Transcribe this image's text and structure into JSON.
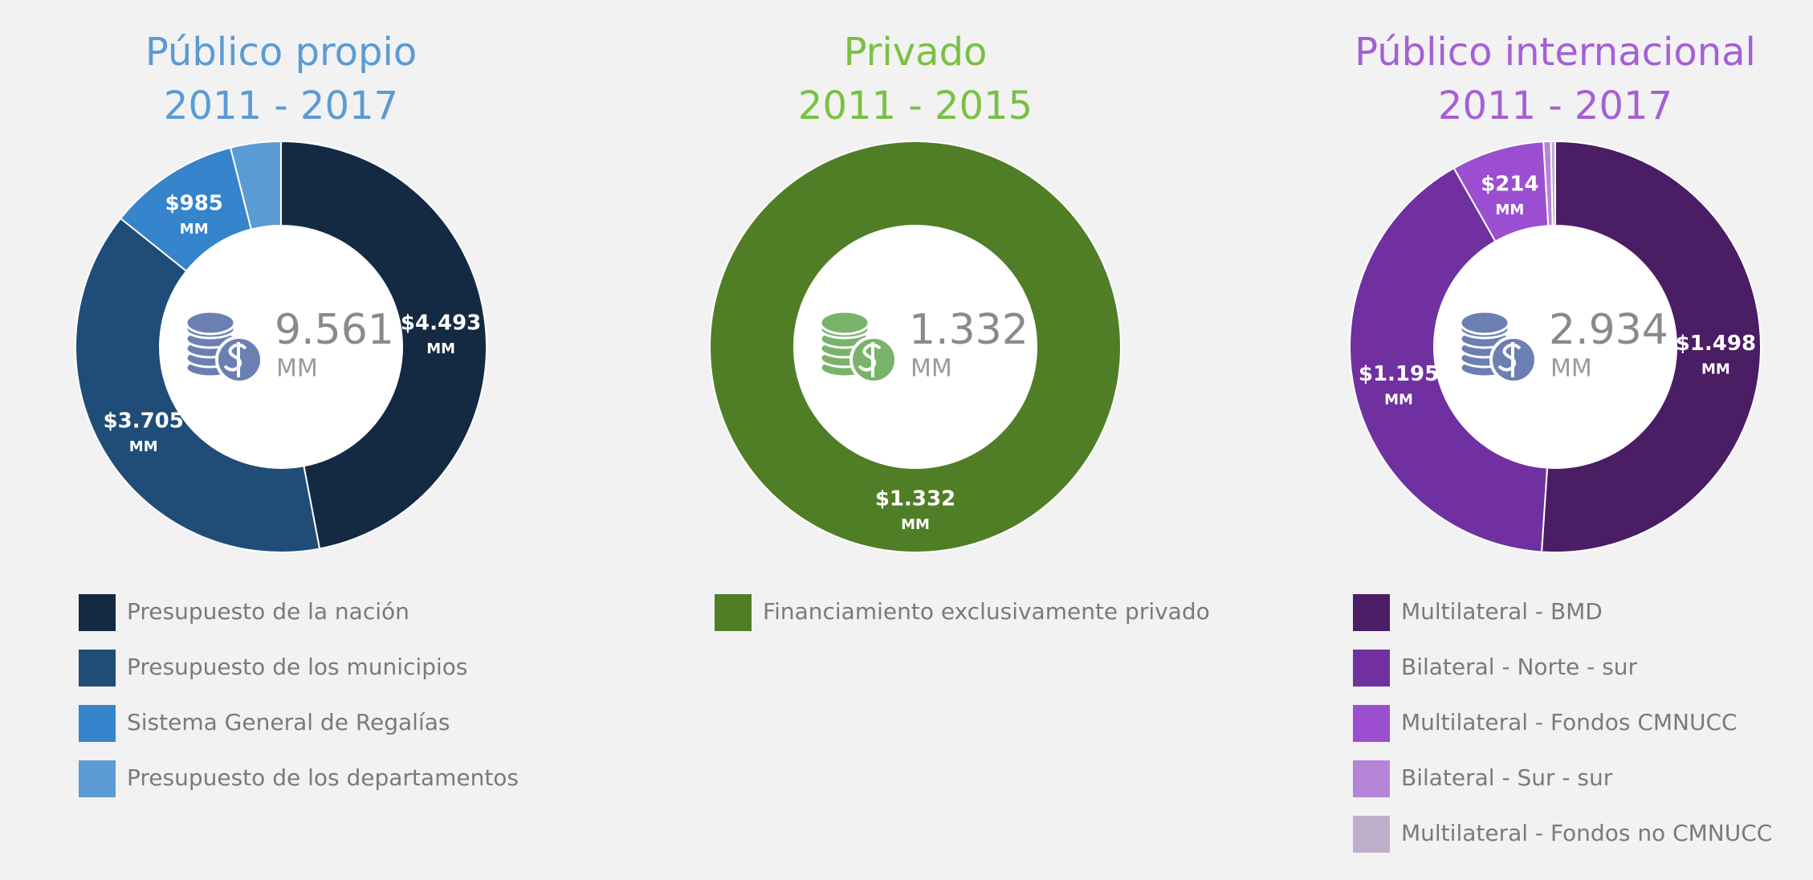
{
  "chart_data": [
    {
      "type": "pie",
      "title": "Público propio",
      "subtitle": "2011 - 2017",
      "title_color": "#5b9bd5",
      "center_label": "9.561",
      "unit": "MM",
      "icon_color": "#6b7fb3",
      "categories": [
        "Presupuesto de la nación",
        "Presupuesto de los municipios",
        "Sistema General de Regalías",
        "Presupuesto de los departamentos"
      ],
      "values": [
        4493,
        3705,
        985,
        378
      ],
      "value_labels": [
        "$4.493",
        "$3.705",
        "$985",
        null
      ],
      "colors": [
        "#132a42",
        "#1f4d78",
        "#3584cc",
        "#5b9bd5"
      ]
    },
    {
      "type": "pie",
      "title": "Privado",
      "subtitle": "2011 - 2015",
      "title_color": "#7ac143",
      "center_label": "1.332",
      "unit": "MM",
      "icon_color": "#79b36a",
      "categories": [
        "Financiamiento exclusivamente privado"
      ],
      "values": [
        1332
      ],
      "value_labels": [
        "$1.332"
      ],
      "colors": [
        "#507e27"
      ]
    },
    {
      "type": "pie",
      "title": "Público internacional",
      "subtitle": "2011 - 2017",
      "title_color": "#a55fd6",
      "center_label": "2.934",
      "unit": "MM",
      "icon_color": "#6b7fb3",
      "categories": [
        "Multilateral - BMD",
        "Bilateral - Norte - sur",
        "Multilateral - Fondos CMNUCC",
        "Bilateral - Sur - sur",
        "Multilateral - Fondos no CMNUCC"
      ],
      "values": [
        1498,
        1195,
        214,
        17,
        10
      ],
      "value_labels": [
        "$1.498",
        "$1.195",
        "$214",
        null,
        null
      ],
      "colors": [
        "#4a1d64",
        "#7030a0",
        "#9b4fd0",
        "#b584d9",
        "#bfaec9"
      ]
    }
  ]
}
